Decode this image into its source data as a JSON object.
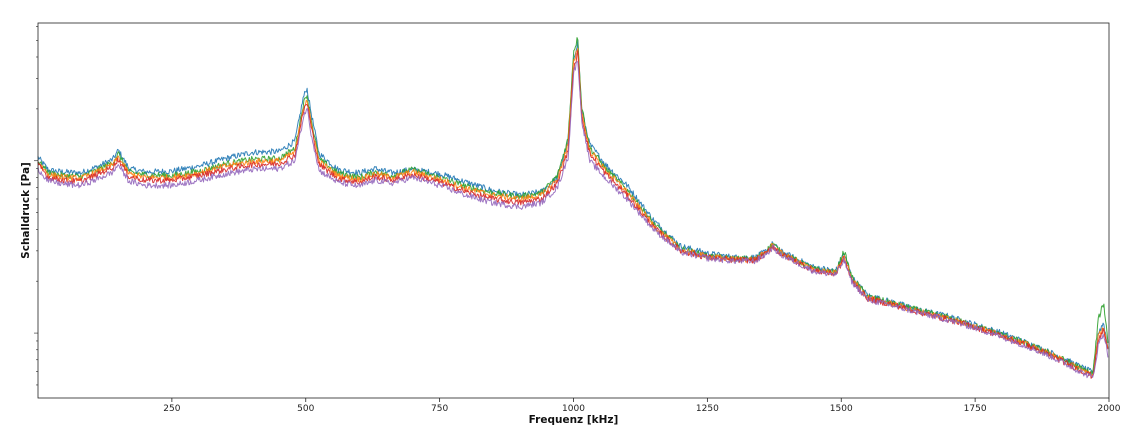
{
  "chart_data": {
    "type": "line",
    "title": "",
    "xlabel": "Frequenz [kHz]",
    "ylabel": "Schalldruck [Pa]",
    "xlim": [
      0,
      2000
    ],
    "x_ticks": [
      250,
      500,
      750,
      1000,
      1250,
      1500,
      1750,
      2000
    ],
    "y_scale": "log",
    "grid": false,
    "legend": "none",
    "series": [
      {
        "color": "#1f77b4",
        "points": [
          [
            0,
            1.05
          ],
          [
            20,
            0.88
          ],
          [
            50,
            0.86
          ],
          [
            80,
            0.85
          ],
          [
            110,
            0.92
          ],
          [
            140,
            1.02
          ],
          [
            150,
            1.15
          ],
          [
            170,
            0.9
          ],
          [
            200,
            0.86
          ],
          [
            250,
            0.87
          ],
          [
            300,
            0.93
          ],
          [
            350,
            1.03
          ],
          [
            400,
            1.12
          ],
          [
            450,
            1.13
          ],
          [
            480,
            1.3
          ],
          [
            495,
            2.3
          ],
          [
            502,
            2.65
          ],
          [
            510,
            1.9
          ],
          [
            525,
            1.1
          ],
          [
            560,
            0.89
          ],
          [
            600,
            0.85
          ],
          [
            630,
            0.9
          ],
          [
            660,
            0.85
          ],
          [
            700,
            0.89
          ],
          [
            750,
            0.84
          ],
          [
            800,
            0.75
          ],
          [
            850,
            0.67
          ],
          [
            900,
            0.63
          ],
          [
            940,
            0.66
          ],
          [
            970,
            0.8
          ],
          [
            990,
            1.3
          ],
          [
            1000,
            3.9
          ],
          [
            1008,
            4.9
          ],
          [
            1015,
            2.0
          ],
          [
            1030,
            1.25
          ],
          [
            1060,
            0.95
          ],
          [
            1100,
            0.72
          ],
          [
            1150,
            0.45
          ],
          [
            1200,
            0.32
          ],
          [
            1250,
            0.29
          ],
          [
            1300,
            0.275
          ],
          [
            1340,
            0.275
          ],
          [
            1360,
            0.3
          ],
          [
            1372,
            0.33
          ],
          [
            1385,
            0.3
          ],
          [
            1400,
            0.285
          ],
          [
            1450,
            0.24
          ],
          [
            1490,
            0.23
          ],
          [
            1505,
            0.29
          ],
          [
            1520,
            0.21
          ],
          [
            1550,
            0.165
          ],
          [
            1600,
            0.15
          ],
          [
            1650,
            0.135
          ],
          [
            1700,
            0.125
          ],
          [
            1750,
            0.112
          ],
          [
            1800,
            0.1
          ],
          [
            1850,
            0.087
          ],
          [
            1900,
            0.075
          ],
          [
            1950,
            0.063
          ],
          [
            1970,
            0.059
          ],
          [
            1980,
            0.1
          ],
          [
            1990,
            0.115
          ],
          [
            1998,
            0.082
          ]
        ]
      },
      {
        "color": "#2ca02c",
        "points": [
          [
            0,
            1.0
          ],
          [
            20,
            0.85
          ],
          [
            50,
            0.82
          ],
          [
            80,
            0.81
          ],
          [
            110,
            0.88
          ],
          [
            140,
            0.98
          ],
          [
            150,
            1.1
          ],
          [
            170,
            0.86
          ],
          [
            200,
            0.83
          ],
          [
            250,
            0.82
          ],
          [
            300,
            0.87
          ],
          [
            350,
            0.96
          ],
          [
            400,
            1.02
          ],
          [
            450,
            1.03
          ],
          [
            480,
            1.18
          ],
          [
            495,
            2.1
          ],
          [
            502,
            2.45
          ],
          [
            510,
            1.75
          ],
          [
            525,
            1.02
          ],
          [
            560,
            0.85
          ],
          [
            600,
            0.8
          ],
          [
            630,
            0.86
          ],
          [
            660,
            0.82
          ],
          [
            700,
            0.89
          ],
          [
            750,
            0.8
          ],
          [
            800,
            0.71
          ],
          [
            850,
            0.65
          ],
          [
            900,
            0.62
          ],
          [
            940,
            0.65
          ],
          [
            970,
            0.82
          ],
          [
            990,
            1.35
          ],
          [
            1000,
            4.3
          ],
          [
            1008,
            5.2
          ],
          [
            1015,
            2.1
          ],
          [
            1030,
            1.2
          ],
          [
            1060,
            0.9
          ],
          [
            1100,
            0.68
          ],
          [
            1150,
            0.43
          ],
          [
            1200,
            0.31
          ],
          [
            1250,
            0.28
          ],
          [
            1300,
            0.27
          ],
          [
            1340,
            0.27
          ],
          [
            1360,
            0.3
          ],
          [
            1372,
            0.33
          ],
          [
            1385,
            0.3
          ],
          [
            1400,
            0.28
          ],
          [
            1450,
            0.235
          ],
          [
            1490,
            0.225
          ],
          [
            1505,
            0.3
          ],
          [
            1520,
            0.21
          ],
          [
            1550,
            0.163
          ],
          [
            1600,
            0.148
          ],
          [
            1650,
            0.134
          ],
          [
            1700,
            0.123
          ],
          [
            1750,
            0.11
          ],
          [
            1800,
            0.098
          ],
          [
            1850,
            0.086
          ],
          [
            1900,
            0.074
          ],
          [
            1950,
            0.062
          ],
          [
            1970,
            0.058
          ],
          [
            1980,
            0.12
          ],
          [
            1990,
            0.15
          ],
          [
            1998,
            0.09
          ]
        ]
      },
      {
        "color": "#ff7f0e",
        "points": [
          [
            0,
            0.98
          ],
          [
            20,
            0.83
          ],
          [
            50,
            0.8
          ],
          [
            80,
            0.79
          ],
          [
            110,
            0.86
          ],
          [
            140,
            0.95
          ],
          [
            150,
            1.05
          ],
          [
            170,
            0.84
          ],
          [
            200,
            0.8
          ],
          [
            250,
            0.8
          ],
          [
            300,
            0.85
          ],
          [
            350,
            0.93
          ],
          [
            400,
            0.99
          ],
          [
            450,
            1.0
          ],
          [
            480,
            1.12
          ],
          [
            495,
            2.0
          ],
          [
            502,
            2.3
          ],
          [
            510,
            1.65
          ],
          [
            525,
            0.99
          ],
          [
            560,
            0.82
          ],
          [
            600,
            0.78
          ],
          [
            630,
            0.84
          ],
          [
            660,
            0.8
          ],
          [
            700,
            0.86
          ],
          [
            750,
            0.78
          ],
          [
            800,
            0.69
          ],
          [
            850,
            0.63
          ],
          [
            900,
            0.6
          ],
          [
            940,
            0.63
          ],
          [
            970,
            0.78
          ],
          [
            990,
            1.25
          ],
          [
            1000,
            3.7
          ],
          [
            1008,
            4.6
          ],
          [
            1015,
            1.95
          ],
          [
            1030,
            1.15
          ],
          [
            1060,
            0.88
          ],
          [
            1100,
            0.66
          ],
          [
            1150,
            0.42
          ],
          [
            1200,
            0.305
          ],
          [
            1250,
            0.278
          ],
          [
            1300,
            0.268
          ],
          [
            1340,
            0.268
          ],
          [
            1360,
            0.295
          ],
          [
            1372,
            0.325
          ],
          [
            1385,
            0.295
          ],
          [
            1400,
            0.278
          ],
          [
            1450,
            0.233
          ],
          [
            1490,
            0.222
          ],
          [
            1505,
            0.28
          ],
          [
            1520,
            0.205
          ],
          [
            1550,
            0.16
          ],
          [
            1600,
            0.146
          ],
          [
            1650,
            0.132
          ],
          [
            1700,
            0.122
          ],
          [
            1750,
            0.109
          ],
          [
            1800,
            0.097
          ],
          [
            1850,
            0.085
          ],
          [
            1900,
            0.073
          ],
          [
            1950,
            0.061
          ],
          [
            1970,
            0.057
          ],
          [
            1980,
            0.095
          ],
          [
            1990,
            0.11
          ],
          [
            1998,
            0.08
          ]
        ]
      },
      {
        "color": "#d62728",
        "points": [
          [
            0,
            0.95
          ],
          [
            20,
            0.8
          ],
          [
            50,
            0.77
          ],
          [
            80,
            0.76
          ],
          [
            110,
            0.83
          ],
          [
            140,
            0.92
          ],
          [
            150,
            1.02
          ],
          [
            170,
            0.81
          ],
          [
            200,
            0.77
          ],
          [
            250,
            0.77
          ],
          [
            300,
            0.82
          ],
          [
            350,
            0.89
          ],
          [
            400,
            0.95
          ],
          [
            450,
            0.96
          ],
          [
            480,
            1.08
          ],
          [
            495,
            1.9
          ],
          [
            502,
            2.2
          ],
          [
            510,
            1.58
          ],
          [
            525,
            0.95
          ],
          [
            560,
            0.79
          ],
          [
            600,
            0.75
          ],
          [
            630,
            0.81
          ],
          [
            660,
            0.77
          ],
          [
            700,
            0.83
          ],
          [
            750,
            0.75
          ],
          [
            800,
            0.66
          ],
          [
            850,
            0.6
          ],
          [
            900,
            0.57
          ],
          [
            940,
            0.6
          ],
          [
            970,
            0.74
          ],
          [
            990,
            1.15
          ],
          [
            1000,
            3.4
          ],
          [
            1008,
            4.2
          ],
          [
            1015,
            1.85
          ],
          [
            1030,
            1.1
          ],
          [
            1060,
            0.84
          ],
          [
            1100,
            0.63
          ],
          [
            1150,
            0.41
          ],
          [
            1200,
            0.3
          ],
          [
            1250,
            0.275
          ],
          [
            1300,
            0.265
          ],
          [
            1340,
            0.265
          ],
          [
            1360,
            0.29
          ],
          [
            1372,
            0.32
          ],
          [
            1385,
            0.29
          ],
          [
            1400,
            0.275
          ],
          [
            1450,
            0.23
          ],
          [
            1490,
            0.22
          ],
          [
            1505,
            0.27
          ],
          [
            1520,
            0.2
          ],
          [
            1550,
            0.158
          ],
          [
            1600,
            0.145
          ],
          [
            1650,
            0.131
          ],
          [
            1700,
            0.12
          ],
          [
            1750,
            0.108
          ],
          [
            1800,
            0.096
          ],
          [
            1850,
            0.084
          ],
          [
            1900,
            0.072
          ],
          [
            1950,
            0.06
          ],
          [
            1970,
            0.056
          ],
          [
            1980,
            0.09
          ],
          [
            1990,
            0.105
          ],
          [
            1998,
            0.078
          ]
        ]
      },
      {
        "color": "#9467bd",
        "points": [
          [
            0,
            0.9
          ],
          [
            20,
            0.76
          ],
          [
            50,
            0.73
          ],
          [
            80,
            0.72
          ],
          [
            110,
            0.78
          ],
          [
            140,
            0.86
          ],
          [
            150,
            0.95
          ],
          [
            170,
            0.76
          ],
          [
            200,
            0.72
          ],
          [
            250,
            0.72
          ],
          [
            300,
            0.77
          ],
          [
            350,
            0.84
          ],
          [
            400,
            0.89
          ],
          [
            450,
            0.9
          ],
          [
            480,
            1.0
          ],
          [
            495,
            1.75
          ],
          [
            502,
            2.05
          ],
          [
            510,
            1.45
          ],
          [
            525,
            0.88
          ],
          [
            560,
            0.75
          ],
          [
            600,
            0.71
          ],
          [
            630,
            0.77
          ],
          [
            660,
            0.74
          ],
          [
            700,
            0.8
          ],
          [
            750,
            0.72
          ],
          [
            800,
            0.63
          ],
          [
            850,
            0.57
          ],
          [
            900,
            0.54
          ],
          [
            940,
            0.57
          ],
          [
            970,
            0.7
          ],
          [
            990,
            1.05
          ],
          [
            1000,
            3.2
          ],
          [
            1008,
            3.9
          ],
          [
            1015,
            1.75
          ],
          [
            1030,
            1.0
          ],
          [
            1060,
            0.79
          ],
          [
            1100,
            0.6
          ],
          [
            1150,
            0.4
          ],
          [
            1200,
            0.295
          ],
          [
            1250,
            0.272
          ],
          [
            1300,
            0.262
          ],
          [
            1340,
            0.262
          ],
          [
            1360,
            0.287
          ],
          [
            1372,
            0.315
          ],
          [
            1385,
            0.287
          ],
          [
            1400,
            0.272
          ],
          [
            1450,
            0.228
          ],
          [
            1490,
            0.218
          ],
          [
            1505,
            0.265
          ],
          [
            1520,
            0.198
          ],
          [
            1550,
            0.156
          ],
          [
            1600,
            0.143
          ],
          [
            1650,
            0.13
          ],
          [
            1700,
            0.119
          ],
          [
            1750,
            0.107
          ],
          [
            1800,
            0.095
          ],
          [
            1850,
            0.083
          ],
          [
            1900,
            0.071
          ],
          [
            1950,
            0.059
          ],
          [
            1970,
            0.055
          ],
          [
            1980,
            0.085
          ],
          [
            1990,
            0.1
          ],
          [
            1998,
            0.075
          ]
        ]
      }
    ]
  }
}
